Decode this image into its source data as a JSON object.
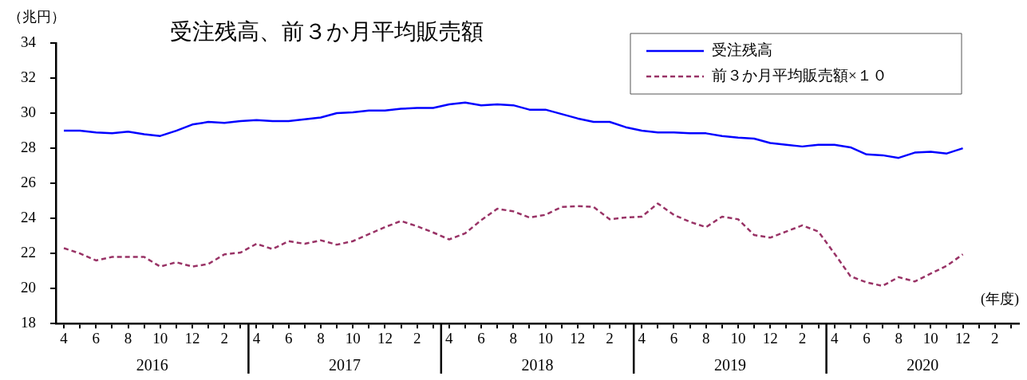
{
  "chart_data": {
    "type": "line",
    "title": "受注残高、前３か月平均販売額",
    "ylabel": "（兆円）",
    "xlabel": "(年度)",
    "categories": [
      "4",
      null,
      "6",
      null,
      "8",
      null,
      "10",
      null,
      "12",
      null,
      "2",
      null,
      "4",
      null,
      "6",
      null,
      "8",
      null,
      "10",
      null,
      "12",
      null,
      "2",
      null,
      "4",
      null,
      "6",
      null,
      "8",
      null,
      "10",
      null,
      "12",
      null,
      "2",
      null,
      "4",
      null,
      "6",
      null,
      "8",
      null,
      "10",
      null,
      "12",
      null,
      "2",
      null,
      "4",
      null,
      "6",
      null,
      "8",
      null,
      "10",
      null,
      "12",
      null,
      "2",
      null
    ],
    "annotations": [
      "2016",
      "2017",
      "2018",
      "2019",
      "2020"
    ],
    "ylim": [
      18,
      34
    ],
    "yticks": [
      18,
      20,
      22,
      24,
      26,
      28,
      30,
      32,
      34
    ],
    "legend": "top right",
    "marker": "none",
    "series": [
      {
        "name": "受注残高",
        "color": "#0000ff",
        "line_style": "solid",
        "values": [
          29.0,
          29.0,
          28.9,
          28.85,
          28.95,
          28.8,
          28.7,
          29.0,
          29.35,
          29.5,
          29.45,
          29.55,
          29.6,
          29.55,
          29.55,
          29.65,
          29.75,
          30.0,
          30.05,
          30.15,
          30.15,
          30.25,
          30.3,
          30.3,
          30.5,
          30.6,
          30.45,
          30.5,
          30.45,
          30.2,
          30.2,
          29.95,
          29.7,
          29.5,
          29.5,
          29.2,
          29.0,
          28.9,
          28.9,
          28.85,
          28.85,
          28.7,
          28.6,
          28.55,
          28.3,
          28.2,
          28.1,
          28.2,
          28.2,
          28.05,
          27.65,
          27.6,
          27.45,
          27.75,
          27.8,
          27.7,
          28.0,
          null,
          null,
          null
        ]
      },
      {
        "name": "前３か月平均販売額×１０",
        "color": "#993366",
        "line_style": "dashed",
        "values": [
          22.3,
          22.0,
          21.6,
          21.8,
          21.8,
          21.8,
          21.25,
          21.5,
          21.25,
          21.4,
          21.95,
          22.05,
          22.55,
          22.25,
          22.7,
          22.55,
          22.75,
          22.5,
          22.7,
          23.1,
          23.5,
          23.85,
          23.55,
          23.2,
          22.8,
          23.15,
          23.9,
          24.55,
          24.4,
          24.05,
          24.2,
          24.65,
          24.7,
          24.65,
          23.95,
          24.05,
          24.1,
          24.85,
          24.2,
          23.8,
          23.5,
          24.1,
          23.95,
          23.05,
          22.9,
          23.25,
          23.6,
          23.25,
          22.0,
          20.7,
          20.35,
          20.15,
          20.65,
          20.4,
          20.85,
          21.3,
          21.95,
          null,
          null,
          null
        ]
      }
    ]
  }
}
